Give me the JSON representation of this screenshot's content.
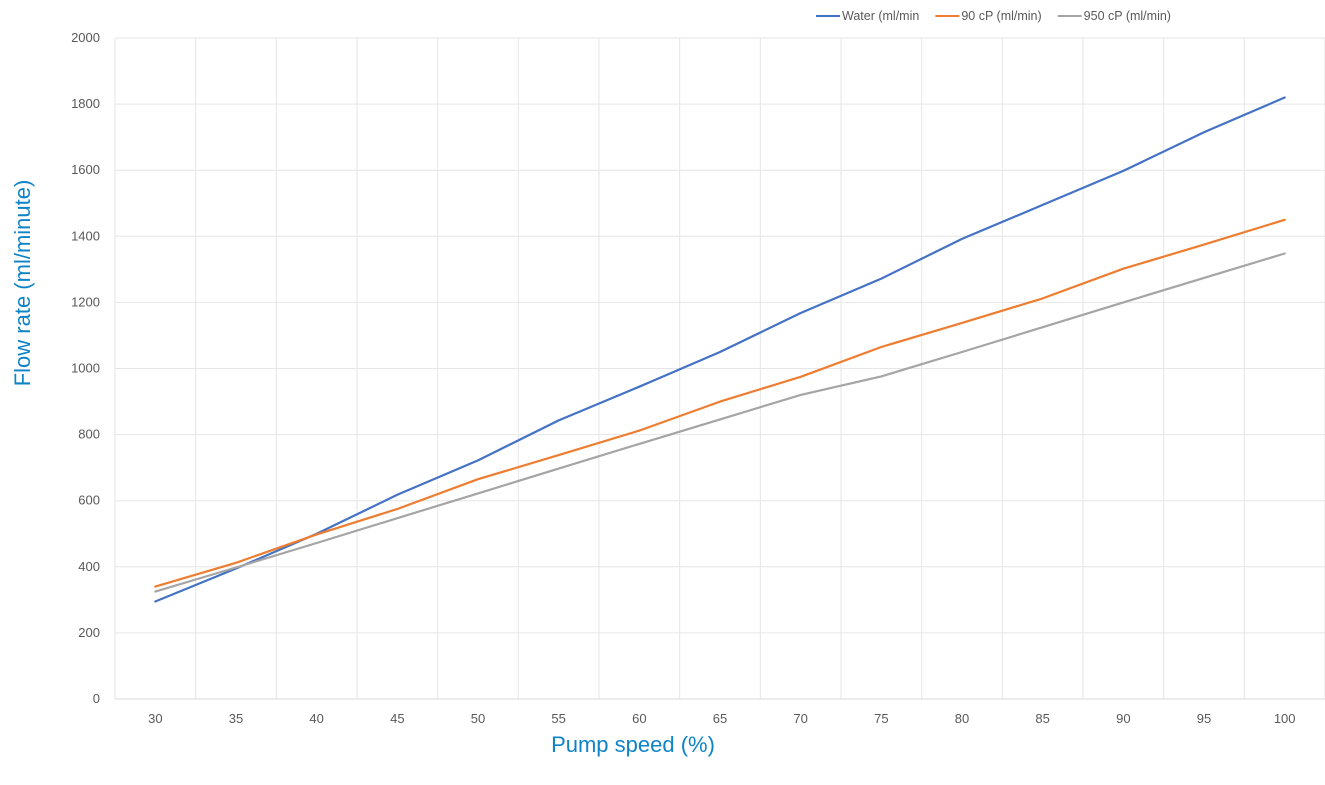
{
  "chart_data": {
    "type": "line",
    "xlabel": "Pump speed (%)",
    "ylabel": "Flow rate (ml/minute)",
    "categories": [
      "30",
      "35",
      "40",
      "45",
      "50",
      "55",
      "60",
      "65",
      "70",
      "75",
      "80",
      "85",
      "90",
      "95",
      "100"
    ],
    "ylim": [
      0,
      2000
    ],
    "yticks": [
      "0",
      "200",
      "400",
      "600",
      "800",
      "1000",
      "1200",
      "1400",
      "1600",
      "1800",
      "2000"
    ],
    "grid": true,
    "legend_position": "top-right",
    "series": [
      {
        "name": "Water (ml/min",
        "color": "#4472C4",
        "values": [
          295,
          395,
          500,
          618,
          722,
          843,
          945,
          1050,
          1168,
          1272,
          1392,
          1495,
          1598,
          1715,
          1820
        ]
      },
      {
        "name": "90 cP (ml/min)",
        "color": "#ED7D31",
        "values": [
          340,
          412,
          498,
          575,
          665,
          738,
          812,
          900,
          975,
          1065,
          1138,
          1212,
          1302,
          1375,
          1450
        ]
      },
      {
        "name": "950 cP (ml/min)",
        "color": "#A5A5A5",
        "values": [
          325,
          398,
          472,
          547,
          622,
          697,
          772,
          846,
          920,
          976,
          1050,
          1125,
          1200,
          1274,
          1348
        ]
      }
    ],
    "title_color": "#0E84C6"
  }
}
